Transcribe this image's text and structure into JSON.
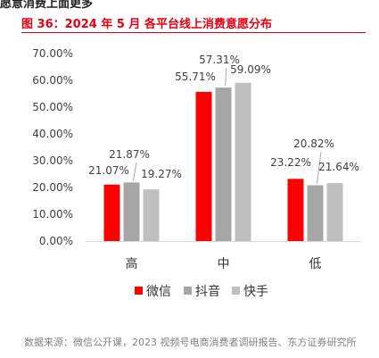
{
  "header": {
    "cut_text": "愿意消费上面更多",
    "title": "图 36：2024 年 5 月 各平台线上消费意愿分布"
  },
  "footer": {
    "source": "数据来源：微信公开课，2023 视频号电商消费者调研报告、东方证券研究所"
  },
  "colors": {
    "accent": "#e60012"
  },
  "chart_data": {
    "type": "bar",
    "categories": [
      "高",
      "中",
      "低"
    ],
    "series": [
      {
        "name": "微信",
        "values": [
          21.07,
          55.71,
          23.22
        ],
        "labels": [
          "21.07%",
          "55.71%",
          "23.22%"
        ],
        "color": "#ff0000"
      },
      {
        "name": "抖音",
        "values": [
          21.87,
          57.31,
          20.82
        ],
        "labels": [
          "21.87%",
          "57.31%",
          "20.82%"
        ],
        "color": "#a6a6a6"
      },
      {
        "name": "快手",
        "values": [
          19.27,
          59.09,
          21.64
        ],
        "labels": [
          "19.27%",
          "59.09%",
          "21.64%"
        ],
        "color": "#bfbfbf"
      }
    ],
    "ylim": [
      0,
      70
    ],
    "yticks": [
      "0.00%",
      "10.00%",
      "20.00%",
      "30.00%",
      "40.00%",
      "50.00%",
      "60.00%",
      "70.00%"
    ],
    "legend_position": "bottom",
    "grid": false
  }
}
